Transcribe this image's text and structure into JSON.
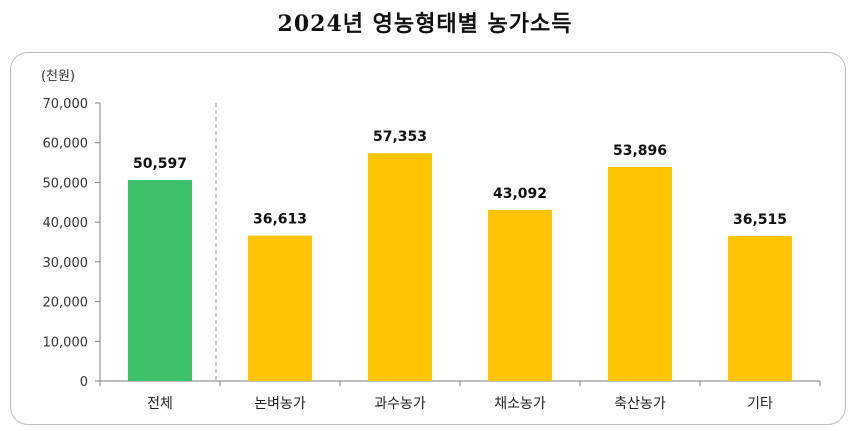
{
  "title": "2024년 영농형태별 농가소득",
  "chart_data": {
    "type": "bar",
    "unit_label": "(천원)",
    "categories": [
      "전체",
      "논벼농가",
      "과수농가",
      "채소농가",
      "축산농가",
      "기타"
    ],
    "values": [
      50597,
      36613,
      57353,
      43092,
      53896,
      36515
    ],
    "value_labels": [
      "50,597",
      "36,613",
      "57,353",
      "43,092",
      "53,896",
      "36,515"
    ],
    "ylim": [
      0,
      70000
    ],
    "yticks": [
      0,
      10000,
      20000,
      30000,
      40000,
      50000,
      60000,
      70000
    ],
    "ytick_labels": [
      "0",
      "10,000",
      "20,000",
      "30,000",
      "40,000",
      "50,000",
      "60,000",
      "70,000"
    ],
    "grid": false,
    "bar_colors": [
      "#3cc06a",
      "#fcc300",
      "#fcc300",
      "#fcc300",
      "#fcc300",
      "#fcc300"
    ],
    "separator_after_index": 0
  }
}
